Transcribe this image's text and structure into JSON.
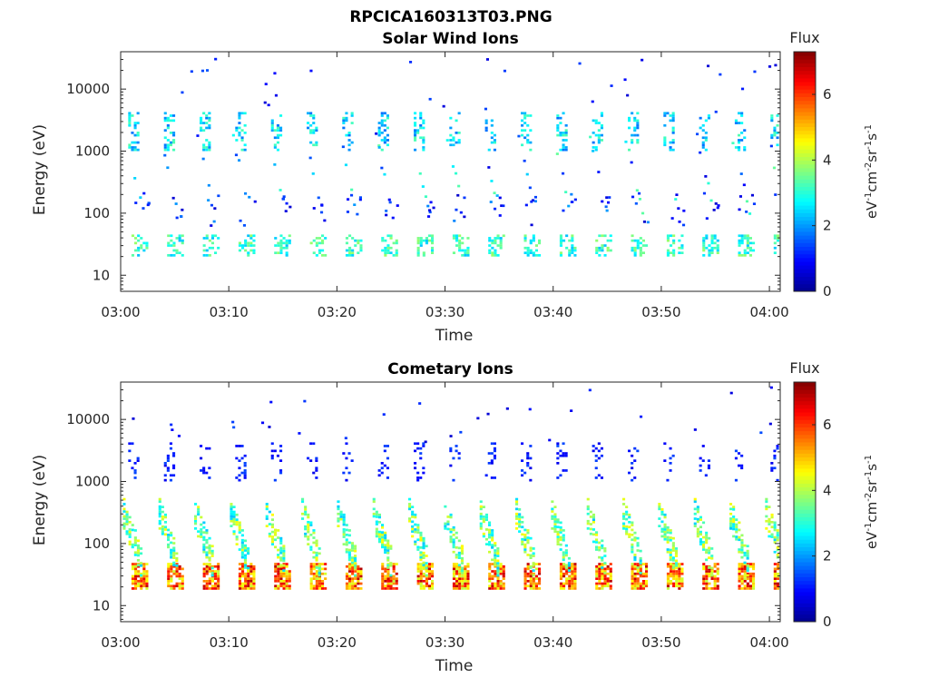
{
  "figure": {
    "title": "RPCICA160313T03.PNG"
  },
  "colormap": [
    "#00008f",
    "#0000ff",
    "#0080ff",
    "#00ffff",
    "#80ff80",
    "#ffff00",
    "#ff8000",
    "#ff0000",
    "#800000"
  ],
  "chart_data": [
    {
      "type": "heatmap",
      "title": "Solar Wind Ions",
      "xlabel": "Time",
      "ylabel": "Energy (eV)",
      "x_ticks": [
        "03:00",
        "03:10",
        "03:20",
        "03:30",
        "03:40",
        "03:50",
        "04:00"
      ],
      "x_range": [
        "03:00",
        "04:01"
      ],
      "y_ticks": [
        "10",
        "100",
        "1000",
        "10000"
      ],
      "y_range": [
        5.5,
        40000
      ],
      "y_scale": "log",
      "colorbar": {
        "label": "Flux",
        "unit": "eV-1cm-2sr-1s-1",
        "ticks": [
          "0",
          "2",
          "4",
          "6"
        ],
        "range": [
          0,
          7.3
        ]
      },
      "pattern": {
        "cycle_minutes": 3.3,
        "low_band_energy_eV": [
          20,
          45
        ],
        "low_band_flux": 3.5,
        "high_band_energy_eV": [
          1000,
          4000
        ],
        "high_band_flux": 2.8,
        "scatter_flux_range": [
          0.5,
          3.5
        ],
        "background_flux": 0
      }
    },
    {
      "type": "heatmap",
      "title": "Cometary Ions",
      "xlabel": "Time",
      "ylabel": "Energy (eV)",
      "x_ticks": [
        "03:00",
        "03:10",
        "03:20",
        "03:30",
        "03:40",
        "03:50",
        "04:00"
      ],
      "x_range": [
        "03:00",
        "04:01"
      ],
      "y_ticks": [
        "10",
        "100",
        "1000",
        "10000"
      ],
      "y_range": [
        5.5,
        40000
      ],
      "y_scale": "log",
      "colorbar": {
        "label": "Flux",
        "unit": "eV-1cm-2sr-1s-1",
        "ticks": [
          "0",
          "2",
          "4",
          "6"
        ],
        "range": [
          0,
          7.3
        ]
      },
      "pattern": {
        "cycle_minutes": 3.3,
        "low_band_energy_eV": [
          18,
          45
        ],
        "low_band_flux": 6.3,
        "mid_band_energy_eV": [
          45,
          300
        ],
        "mid_band_flux": 4.2,
        "high_band_energy_eV": [
          1000,
          4000
        ],
        "high_band_flux": 1.2,
        "background_flux": 0
      }
    }
  ]
}
